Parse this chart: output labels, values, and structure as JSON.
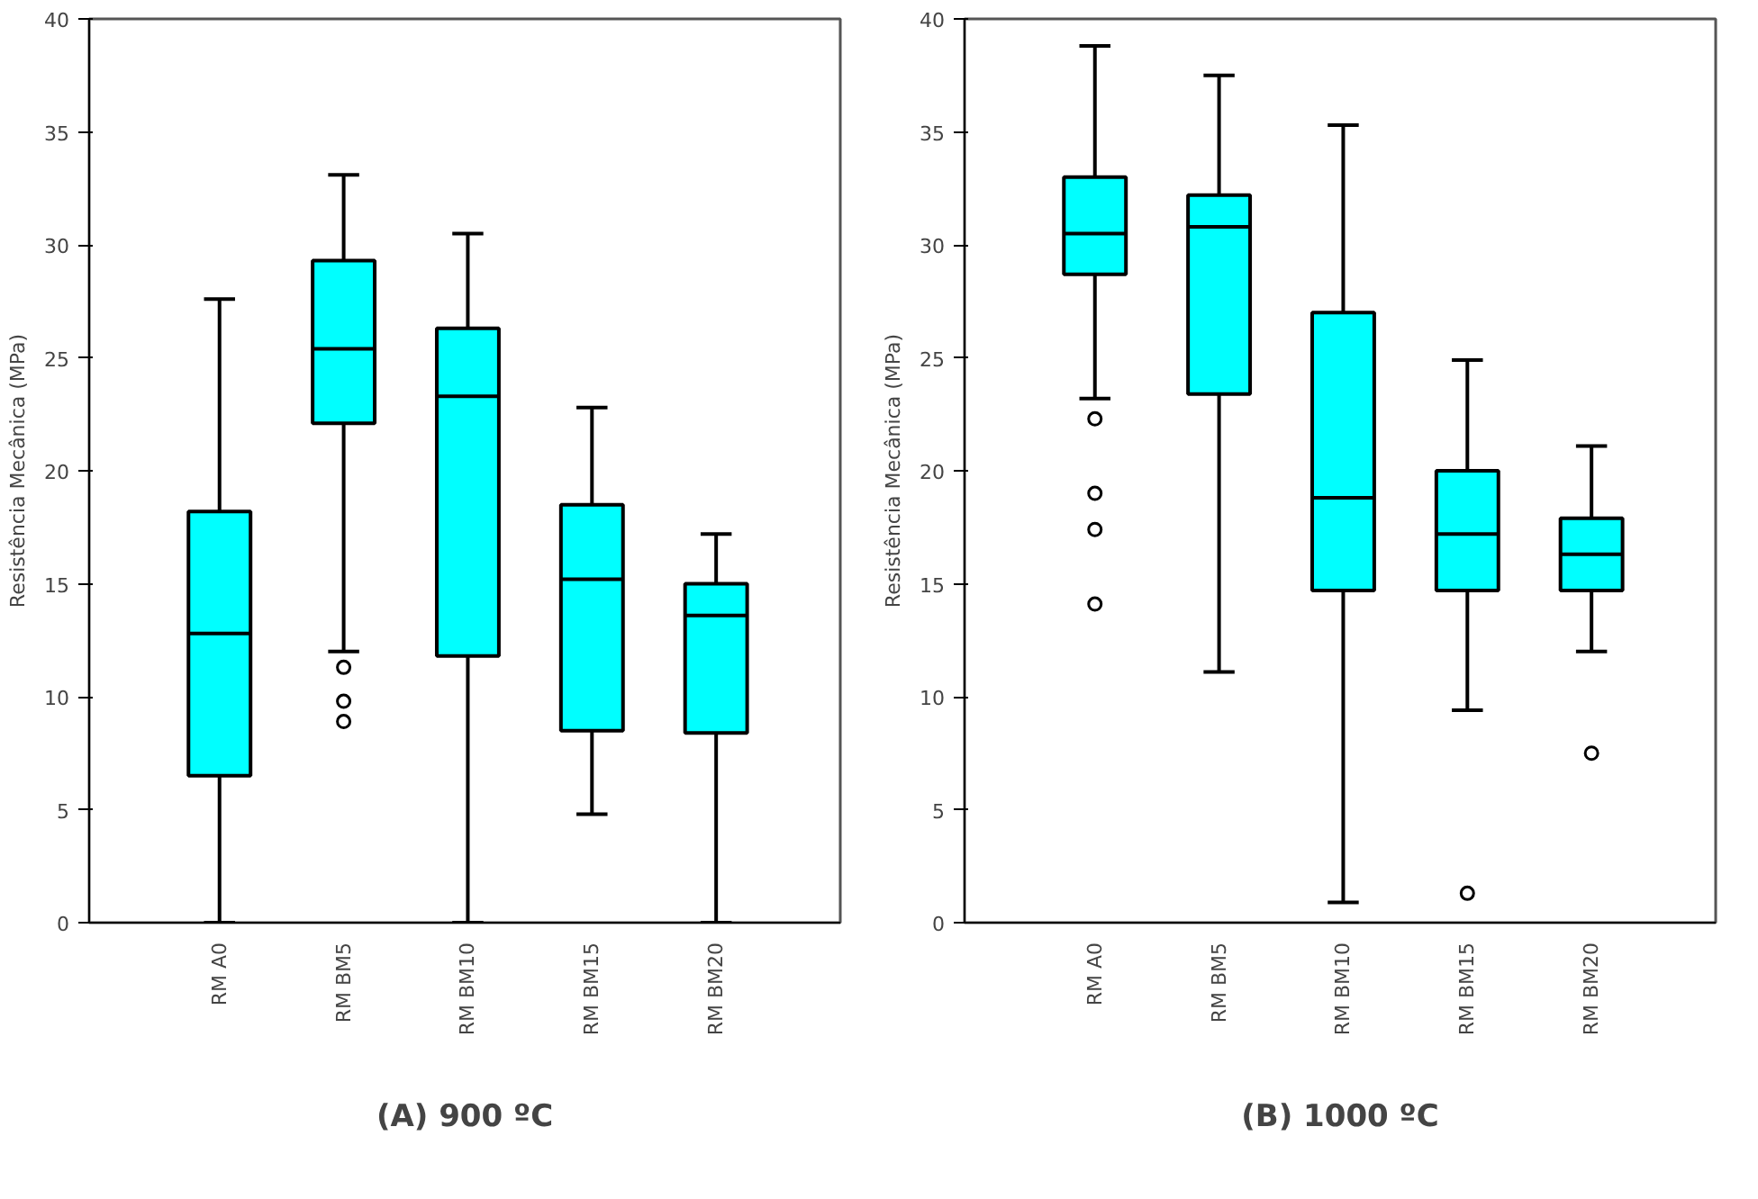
{
  "chart_data": [
    {
      "type": "box",
      "title": "(A) 900 ºC",
      "ylabel": "Resistência Mecânica (MPa)",
      "categories": [
        "RM A0",
        "RM BM5",
        "RM BM10",
        "RM BM15",
        "RM BM20"
      ],
      "ylim": [
        0,
        40
      ],
      "yticks": [
        0,
        5,
        10,
        15,
        20,
        25,
        30,
        35,
        40
      ],
      "marker": "circle",
      "series": [
        {
          "color": "#00ffff",
          "boxes": [
            {
              "low": 0,
              "q1": 6.5,
              "median": 12.8,
              "q3": 18.2,
              "high": 27.6
            },
            {
              "low": 12.0,
              "q1": 22.1,
              "median": 25.4,
              "q3": 29.3,
              "high": 33.1,
              "outliers": [
                11.3,
                9.8,
                8.9
              ]
            },
            {
              "low": 0,
              "q1": 11.8,
              "median": 23.3,
              "q3": 26.3,
              "high": 30.5
            },
            {
              "low": 4.8,
              "q1": 8.5,
              "median": 15.2,
              "q3": 18.5,
              "high": 22.8
            },
            {
              "low": 0,
              "q1": 8.4,
              "median": 13.6,
              "q3": 15.0,
              "high": 17.2
            }
          ]
        }
      ]
    },
    {
      "type": "box",
      "title": "(B) 1000 ºC",
      "ylabel": "Resistência Mecânica (MPa)",
      "categories": [
        "RM A0",
        "RM BM5",
        "RM BM10",
        "RM BM15",
        "RM BM20"
      ],
      "ylim": [
        0,
        40
      ],
      "yticks": [
        0,
        5,
        10,
        15,
        20,
        25,
        30,
        35,
        40
      ],
      "marker": "circle",
      "series": [
        {
          "color": "#00ffff",
          "boxes": [
            {
              "low": 23.2,
              "q1": 28.7,
              "median": 30.5,
              "q3": 33.0,
              "high": 38.8,
              "outliers": [
                22.3,
                19.0,
                17.4,
                14.1
              ]
            },
            {
              "low": 11.1,
              "q1": 23.4,
              "median": 30.8,
              "q3": 32.2,
              "high": 37.5
            },
            {
              "low": 0.9,
              "q1": 14.7,
              "median": 18.8,
              "q3": 27.0,
              "high": 35.3
            },
            {
              "low": 9.4,
              "q1": 14.7,
              "median": 17.2,
              "q3": 20.0,
              "high": 24.9,
              "outliers": [
                1.3
              ]
            },
            {
              "low": 12.0,
              "q1": 14.7,
              "median": 16.3,
              "q3": 17.9,
              "high": 21.1,
              "outliers": [
                7.5
              ]
            }
          ]
        }
      ]
    }
  ]
}
